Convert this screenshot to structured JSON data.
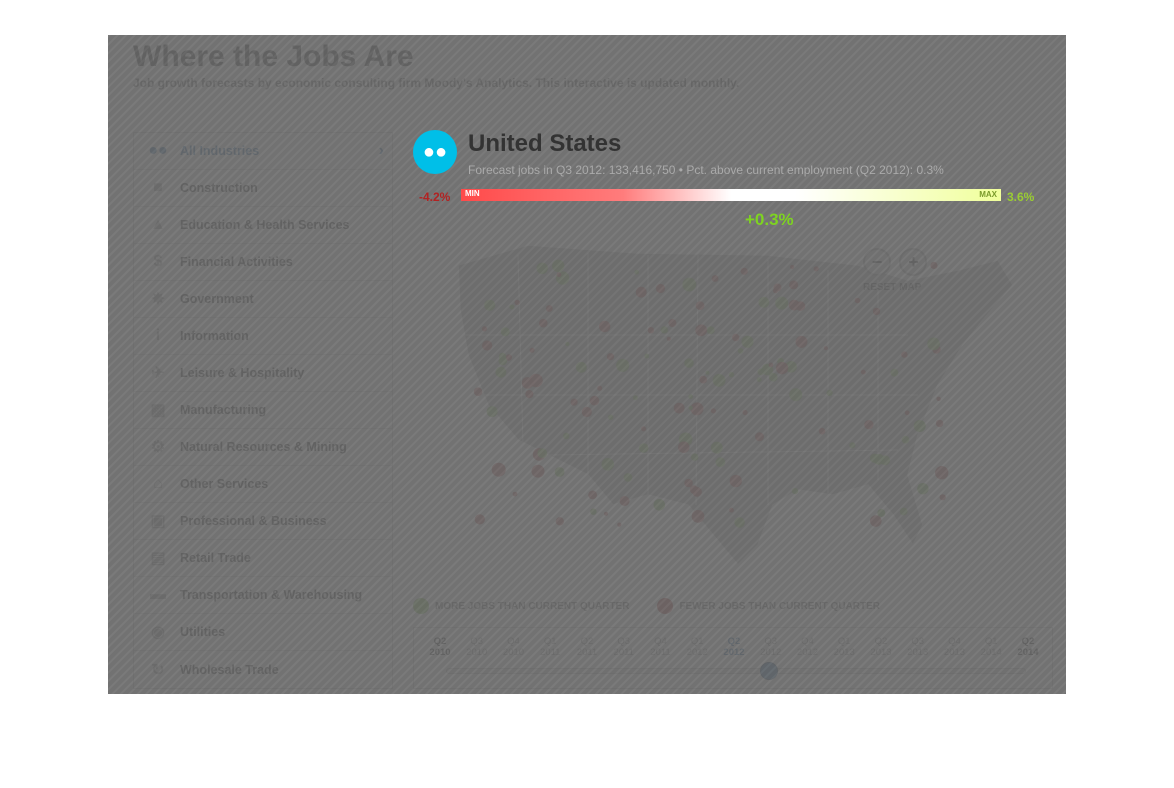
{
  "header": {
    "title": "Where the Jobs Are",
    "subtitle": "Job growth forecasts by economic consulting firm Moody's Analytics. This interactive is updated monthly."
  },
  "sidebar": {
    "items": [
      {
        "label": "All Industries",
        "icon": "people-icon",
        "active": true
      },
      {
        "label": "Construction",
        "icon": "construction-icon"
      },
      {
        "label": "Education & Health Services",
        "icon": "education-icon"
      },
      {
        "label": "Financial Activities",
        "icon": "dollar-icon"
      },
      {
        "label": "Government",
        "icon": "government-icon"
      },
      {
        "label": "Information",
        "icon": "info-icon"
      },
      {
        "label": "Leisure & Hospitality",
        "icon": "plane-icon"
      },
      {
        "label": "Manufacturing",
        "icon": "car-icon"
      },
      {
        "label": "Natural Resources & Mining",
        "icon": "gear-icon"
      },
      {
        "label": "Other Services",
        "icon": "house-icon"
      },
      {
        "label": "Professional & Business",
        "icon": "briefcase-icon"
      },
      {
        "label": "Retail Trade",
        "icon": "cart-icon"
      },
      {
        "label": "Transportation & Warehousing",
        "icon": "truck-icon"
      },
      {
        "label": "Utilities",
        "icon": "bulb-icon"
      },
      {
        "label": "Wholesale Trade",
        "icon": "recycle-icon"
      }
    ]
  },
  "panel": {
    "title": "United States",
    "subtitle": "Forecast jobs in Q3 2012: 133,416,750 • Pct. above current employment (Q2 2012): 0.3%",
    "min_value": "-4.2%",
    "max_value": "3.6%",
    "min_label": "MIN",
    "max_label": "MAX",
    "current_value": "+0.3%"
  },
  "map": {
    "reset_label": "RESET MAP",
    "zoom_out": "−",
    "zoom_in": "+"
  },
  "legend": {
    "more": "MORE JOBS THAN CURRENT QUARTER",
    "fewer": "FEWER JOBS THAN CURRENT QUARTER",
    "more_color": "#7cbf45",
    "fewer_color": "#b23a3a"
  },
  "timeline": {
    "ticks": [
      {
        "q": "Q2",
        "y": "2010",
        "style": "bold"
      },
      {
        "q": "Q3",
        "y": "2010"
      },
      {
        "q": "Q4",
        "y": "2010"
      },
      {
        "q": "Q1",
        "y": "2011"
      },
      {
        "q": "Q2",
        "y": "2011"
      },
      {
        "q": "Q3",
        "y": "2011"
      },
      {
        "q": "Q4",
        "y": "2011"
      },
      {
        "q": "Q1",
        "y": "2012"
      },
      {
        "q": "Q2",
        "y": "2012",
        "style": "cur"
      },
      {
        "q": "Q3",
        "y": "2012"
      },
      {
        "q": "Q4",
        "y": "2012"
      },
      {
        "q": "Q1",
        "y": "2013"
      },
      {
        "q": "Q2",
        "y": "2013"
      },
      {
        "q": "Q3",
        "y": "2013"
      },
      {
        "q": "Q4",
        "y": "2013"
      },
      {
        "q": "Q1",
        "y": "2014"
      },
      {
        "q": "Q2",
        "y": "2014",
        "style": "bold"
      }
    ],
    "selected": "Q3 2012"
  }
}
